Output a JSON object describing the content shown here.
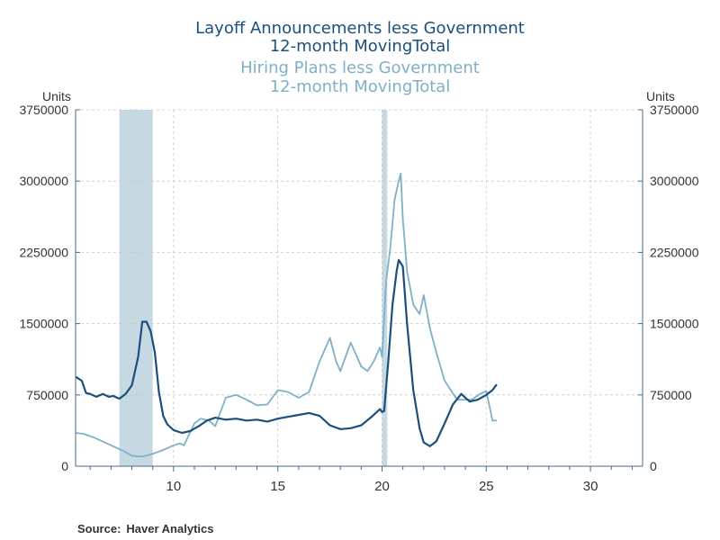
{
  "colors": {
    "layoff": "#1b4f7d",
    "hiring": "#7fb0c7",
    "recession": "#c6d9e2",
    "axis": "#4a6a86",
    "grid": "#c8c8c8"
  },
  "chart_data": {
    "type": "line",
    "title": "Layoff Announcements less Government",
    "title_line2": "12-month MovingTotal",
    "subtitle": "Hiring Plans less Government",
    "subtitle_line2": "12-month MovingTotal",
    "ylabel_left": "Units",
    "ylabel_right": "Units",
    "xlim": [
      2005.3,
      2032.5
    ],
    "ylim": [
      0,
      3750000
    ],
    "x_ticks": [
      2010,
      2015,
      2020,
      2025,
      2030
    ],
    "x_tick_labels": [
      "10",
      "15",
      "20",
      "25",
      "30"
    ],
    "y_ticks": [
      0,
      750000,
      1500000,
      2250000,
      3000000,
      3750000
    ],
    "y_tick_labels": [
      "0",
      "750000",
      "1500000",
      "2250000",
      "3000000",
      "3750000"
    ],
    "grid": true,
    "recessions": [
      [
        2007.4,
        2009.0
      ],
      [
        2020.0,
        2020.25
      ]
    ],
    "series": [
      {
        "name": "Layoff Announcements less Government",
        "x": [
          2005.3,
          2005.6,
          2005.8,
          2006.0,
          2006.3,
          2006.6,
          2006.9,
          2007.1,
          2007.4,
          2007.7,
          2008.0,
          2008.3,
          2008.5,
          2008.7,
          2008.9,
          2009.1,
          2009.3,
          2009.5,
          2009.7,
          2010.0,
          2010.4,
          2010.8,
          2011.2,
          2011.6,
          2012.0,
          2012.5,
          2013.0,
          2013.5,
          2014.0,
          2014.5,
          2015.0,
          2015.5,
          2016.0,
          2016.5,
          2017.0,
          2017.5,
          2018.0,
          2018.5,
          2019.0,
          2019.5,
          2019.9,
          2020.0,
          2020.1,
          2020.3,
          2020.5,
          2020.7,
          2020.8,
          2021.0,
          2021.2,
          2021.5,
          2021.8,
          2022.0,
          2022.3,
          2022.6,
          2023.0,
          2023.4,
          2023.8,
          2024.2,
          2024.6,
          2025.0,
          2025.3,
          2025.5
        ],
        "values": [
          940000,
          900000,
          770000,
          760000,
          730000,
          760000,
          730000,
          740000,
          710000,
          760000,
          850000,
          1150000,
          1520000,
          1520000,
          1420000,
          1200000,
          780000,
          530000,
          440000,
          380000,
          350000,
          370000,
          420000,
          480000,
          510000,
          490000,
          500000,
          480000,
          490000,
          470000,
          500000,
          520000,
          540000,
          560000,
          530000,
          430000,
          390000,
          400000,
          430000,
          520000,
          600000,
          570000,
          580000,
          1100000,
          1700000,
          2050000,
          2170000,
          2100000,
          1500000,
          800000,
          400000,
          250000,
          210000,
          260000,
          450000,
          650000,
          760000,
          680000,
          700000,
          750000,
          800000,
          860000
        ]
      },
      {
        "name": "Hiring Plans less Government",
        "x": [
          2005.3,
          2005.7,
          2006.2,
          2006.7,
          2007.2,
          2007.6,
          2008.0,
          2008.5,
          2009.0,
          2009.5,
          2010.0,
          2010.3,
          2010.5,
          2011.0,
          2011.3,
          2011.7,
          2012.0,
          2012.5,
          2013.0,
          2013.5,
          2014.0,
          2014.5,
          2015.0,
          2015.5,
          2016.0,
          2016.5,
          2017.0,
          2017.5,
          2017.8,
          2018.0,
          2018.5,
          2019.0,
          2019.3,
          2019.6,
          2019.9,
          2020.0,
          2020.2,
          2020.4,
          2020.6,
          2020.8,
          2020.9,
          2021.0,
          2021.2,
          2021.5,
          2021.8,
          2022.0,
          2022.3,
          2022.6,
          2023.0,
          2023.3,
          2023.6,
          2024.0,
          2024.3,
          2024.7,
          2025.0,
          2025.3,
          2025.5
        ],
        "values": [
          350000,
          340000,
          300000,
          250000,
          200000,
          160000,
          110000,
          100000,
          130000,
          170000,
          220000,
          240000,
          220000,
          450000,
          500000,
          480000,
          420000,
          720000,
          750000,
          700000,
          640000,
          650000,
          800000,
          780000,
          720000,
          780000,
          1100000,
          1350000,
          1100000,
          1000000,
          1300000,
          1050000,
          1000000,
          1100000,
          1250000,
          1150000,
          1950000,
          2300000,
          2800000,
          3000000,
          3080000,
          2600000,
          2050000,
          1700000,
          1600000,
          1800000,
          1450000,
          1200000,
          900000,
          800000,
          700000,
          700000,
          700000,
          760000,
          790000,
          480000,
          480000
        ]
      }
    ]
  },
  "source": {
    "label": "Source:",
    "value": "Haver Analytics"
  }
}
